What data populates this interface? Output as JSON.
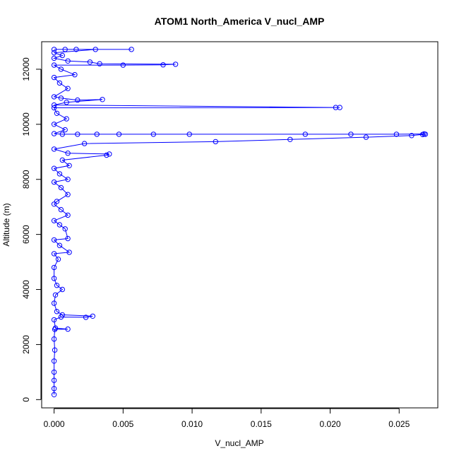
{
  "chart_data": {
    "type": "scatter",
    "title": "ATOM1 North_America V_nucl_AMP",
    "xlabel": "V_nucl_AMP",
    "ylabel": "Altitude (m)",
    "xlim": [
      -0.0009,
      0.0278
    ],
    "ylim": [
      -300,
      13000
    ],
    "xticks": [
      0.0,
      0.005,
      0.01,
      0.015,
      0.02,
      0.025
    ],
    "xtick_labels": [
      "0.000",
      "0.005",
      "0.010",
      "0.015",
      "0.020",
      "0.025"
    ],
    "yticks": [
      0,
      2000,
      4000,
      6000,
      8000,
      10000,
      12000
    ],
    "ytick_labels": [
      "0",
      "2000",
      "4000",
      "6000",
      "8000",
      "10000",
      "12000"
    ],
    "grid": false,
    "series": [
      {
        "color": "#0000ff",
        "marker": "open-circle",
        "connected": true,
        "points": [
          [
            0.0,
            180
          ],
          [
            0.0,
            400
          ],
          [
            0.0,
            700
          ],
          [
            0.0,
            1000
          ],
          [
            0.0,
            1400
          ],
          [
            5e-05,
            1800
          ],
          [
            0.0,
            2200
          ],
          [
            5e-05,
            2550
          ],
          [
            0.001,
            2560
          ],
          [
            0.0001,
            2600
          ],
          [
            0.0,
            2900
          ],
          [
            0.0005,
            3000
          ],
          [
            0.0023,
            2990
          ],
          [
            0.0028,
            3030
          ],
          [
            0.0006,
            3080
          ],
          [
            0.0002,
            3200
          ],
          [
            0.0,
            3500
          ],
          [
            0.0001,
            3800
          ],
          [
            0.0006,
            4000
          ],
          [
            0.0002,
            4150
          ],
          [
            0.0,
            4400
          ],
          [
            0.0,
            4800
          ],
          [
            0.0003,
            5100
          ],
          [
            0.0,
            5300
          ],
          [
            0.0011,
            5350
          ],
          [
            0.0004,
            5600
          ],
          [
            0.0,
            5800
          ],
          [
            0.001,
            5850
          ],
          [
            0.0008,
            6200
          ],
          [
            0.0004,
            6350
          ],
          [
            0.0,
            6500
          ],
          [
            0.001,
            6700
          ],
          [
            0.0005,
            6900
          ],
          [
            0.0,
            7100
          ],
          [
            0.0002,
            7200
          ],
          [
            0.001,
            7450
          ],
          [
            0.0005,
            7700
          ],
          [
            0.0,
            7900
          ],
          [
            0.001,
            8000
          ],
          [
            0.0004,
            8200
          ],
          [
            0.0,
            8400
          ],
          [
            0.0011,
            8500
          ],
          [
            0.0006,
            8700
          ],
          [
            0.0038,
            8880
          ],
          [
            0.004,
            8920
          ],
          [
            0.001,
            8950
          ],
          [
            0.0,
            9100
          ],
          [
            0.0022,
            9300
          ],
          [
            0.0117,
            9370
          ],
          [
            0.0171,
            9450
          ],
          [
            0.0226,
            9530
          ],
          [
            0.0259,
            9590
          ],
          [
            0.0267,
            9630
          ],
          [
            0.0269,
            9640
          ],
          [
            0.0268,
            9650
          ],
          [
            0.0248,
            9640
          ],
          [
            0.0215,
            9640
          ],
          [
            0.0182,
            9640
          ],
          [
            0.0098,
            9640
          ],
          [
            0.0072,
            9640
          ],
          [
            0.0047,
            9640
          ],
          [
            0.0031,
            9640
          ],
          [
            0.0017,
            9640
          ],
          [
            0.0006,
            9640
          ],
          [
            0.0,
            9660
          ],
          [
            0.0008,
            9800
          ],
          [
            0.0,
            10000
          ],
          [
            0.0009,
            10200
          ],
          [
            0.0002,
            10400
          ],
          [
            0.0,
            10600
          ],
          [
            0.0204,
            10610
          ],
          [
            0.0207,
            10610
          ],
          [
            0.0,
            10700
          ],
          [
            0.0009,
            10800
          ],
          [
            0.0035,
            10900
          ],
          [
            0.0017,
            10880
          ],
          [
            0.0005,
            10950
          ],
          [
            0.0,
            11000
          ],
          [
            0.001,
            11300
          ],
          [
            0.0004,
            11500
          ],
          [
            0.0,
            11700
          ],
          [
            0.0015,
            11800
          ],
          [
            0.0005,
            12000
          ],
          [
            0.0,
            12150
          ],
          [
            0.005,
            12150
          ],
          [
            0.0079,
            12160
          ],
          [
            0.0088,
            12180
          ],
          [
            0.0033,
            12200
          ],
          [
            0.0026,
            12260
          ],
          [
            0.001,
            12300
          ],
          [
            0.0,
            12400
          ],
          [
            0.0006,
            12500
          ],
          [
            0.0,
            12600
          ],
          [
            0.003,
            12720
          ],
          [
            0.0056,
            12720
          ],
          [
            0.0016,
            12720
          ],
          [
            0.0008,
            12720
          ],
          [
            0.0,
            12720
          ]
        ]
      }
    ]
  }
}
